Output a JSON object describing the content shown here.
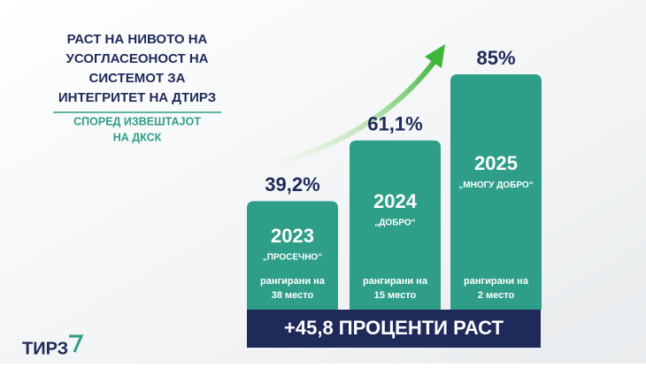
{
  "chart_data": {
    "type": "bar",
    "title": [
      "РАСТ НА НИВОТО НА",
      "УСОГЛАСЕОНОСТ НА",
      "СИСТЕМОТ ЗА",
      "ИНТЕГРИТЕТ НА ДТИРЗ"
    ],
    "subtitle": [
      "СПОРЕД ИЗВЕШТАЈОТ",
      "НА ДКСК"
    ],
    "categories": [
      "2023",
      "2024",
      "2025"
    ],
    "values": [
      39.2,
      61.1,
      85
    ],
    "value_labels": [
      "39,2%",
      "61,1%",
      "85%"
    ],
    "ratings": [
      "„ПРОСЕЧНО“",
      "„ДОБРО“",
      "„МНОГУ ДОБРО“"
    ],
    "rank_notes": [
      [
        "рангирани на",
        "38 место"
      ],
      [
        "рангирани на",
        "15 место"
      ],
      [
        "рангирани на",
        "2 место"
      ]
    ],
    "color": "#2e9e89",
    "banner": "+45,8 ПРОЦЕНТИ РАСТ",
    "logo": "ТИРЗ"
  }
}
